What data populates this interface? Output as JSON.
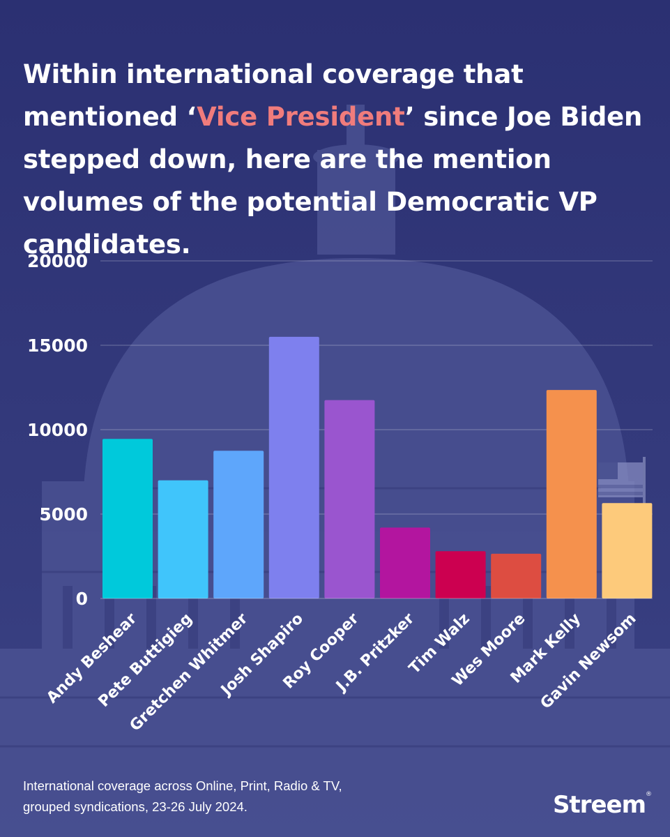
{
  "title": {
    "part1": "Within international coverage that mentioned ‘",
    "highlight": "Vice President",
    "part2": "’ since Joe Biden stepped down, here are the mention volumes of the potential Democratic VP candidates."
  },
  "chart_data": {
    "type": "bar",
    "categories": [
      "Andy Beshear",
      "Pete Buttigieg",
      "Gretchen Whitmer",
      "Josh Shapiro",
      "Roy Cooper",
      "J.B. Pritzker",
      "Tim Walz",
      "Wes Moore",
      "Mark Kelly",
      "Gavin Newsom"
    ],
    "values": [
      9450,
      7000,
      8750,
      15500,
      11750,
      4200,
      2800,
      2650,
      12350,
      5650
    ],
    "colors": [
      "#00c9db",
      "#40c5fb",
      "#5ea6fb",
      "#7e80ee",
      "#9a55cf",
      "#b3159f",
      "#cc0050",
      "#dd4d41",
      "#f5914d",
      "#fdca7b"
    ],
    "yticks": [
      0,
      5000,
      10000,
      15000,
      20000
    ],
    "ylim": [
      0,
      20000
    ],
    "grid": true,
    "title": "",
    "xlabel": "",
    "ylabel": ""
  },
  "footer": {
    "line1": "International coverage across Online, Print, Radio & TV,",
    "line2": "grouped syndications, 23-26 July 2024."
  },
  "brand": {
    "name": "Streem",
    "mark": "®"
  },
  "colors": {
    "background": "#34397a",
    "highlight": "#f07c7c",
    "text": "#ffffff"
  }
}
